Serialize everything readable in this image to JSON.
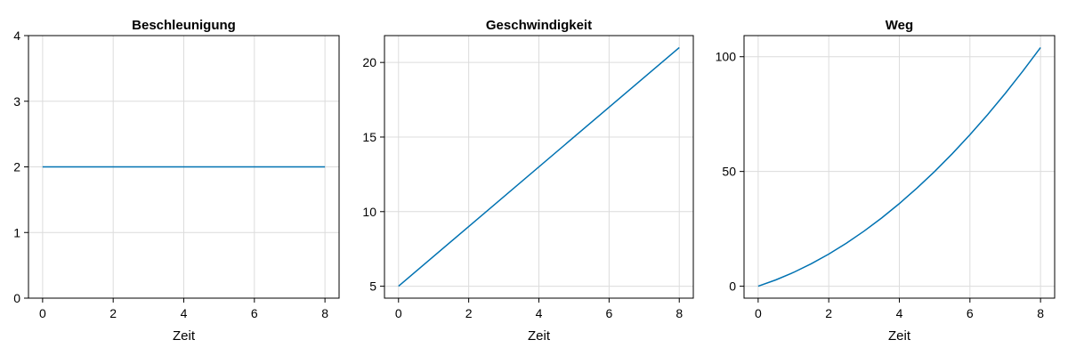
{
  "chart_data": [
    {
      "type": "line",
      "title": "Beschleunigung",
      "xlabel": "Zeit",
      "ylabel": "",
      "xlim": [
        -0.4,
        8.4
      ],
      "ylim": [
        0,
        4
      ],
      "xticks": [
        0,
        2,
        4,
        6,
        8
      ],
      "yticks": [
        0,
        1,
        2,
        3,
        4
      ],
      "grid": true,
      "color": "#0072b2",
      "series": [
        {
          "x": [
            0,
            8
          ],
          "y": [
            2,
            2
          ]
        }
      ]
    },
    {
      "type": "line",
      "title": "Geschwindigkeit",
      "xlabel": "Zeit",
      "ylabel": "",
      "xlim": [
        -0.4,
        8.4
      ],
      "ylim": [
        4.2,
        21.8
      ],
      "xticks": [
        0,
        2,
        4,
        6,
        8
      ],
      "yticks": [
        5,
        10,
        15,
        20
      ],
      "grid": true,
      "color": "#0072b2",
      "series": [
        {
          "x": [
            0,
            8
          ],
          "y": [
            5,
            21
          ]
        }
      ]
    },
    {
      "type": "line",
      "title": "Weg",
      "xlabel": "Zeit",
      "ylabel": "",
      "xlim": [
        -0.4,
        8.4
      ],
      "ylim": [
        -5.2,
        109.2
      ],
      "xticks": [
        0,
        2,
        4,
        6,
        8
      ],
      "yticks": [
        0,
        50,
        100
      ],
      "grid": true,
      "color": "#0072b2",
      "series": [
        {
          "x": [
            0,
            0.5,
            1,
            1.5,
            2,
            2.5,
            3,
            3.5,
            4,
            4.5,
            5,
            5.5,
            6,
            6.5,
            7,
            7.5,
            8
          ],
          "y": [
            0,
            2.75,
            6,
            9.75,
            14,
            18.75,
            24,
            29.75,
            36,
            42.75,
            50,
            57.75,
            66,
            74.75,
            84,
            93.75,
            104
          ]
        }
      ]
    }
  ]
}
